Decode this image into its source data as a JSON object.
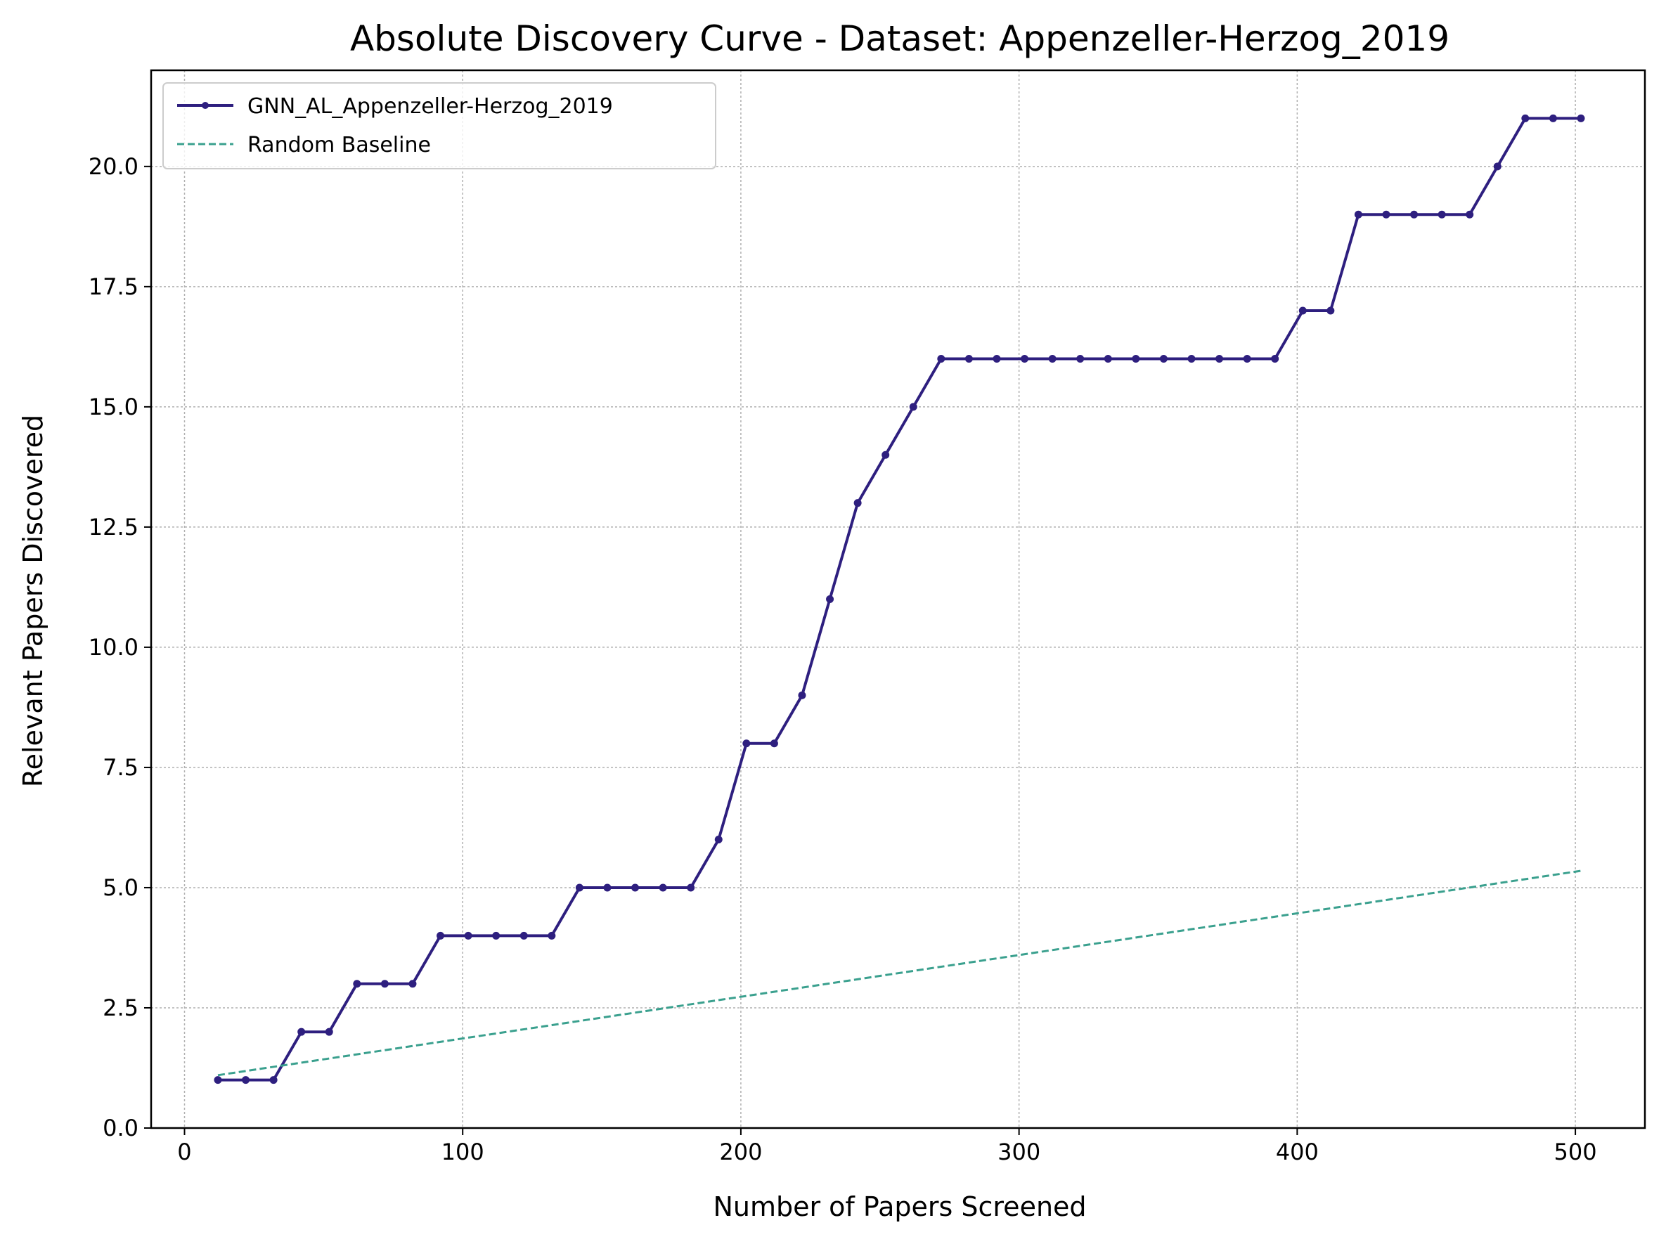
{
  "chart_data": {
    "type": "line",
    "title": "Absolute Discovery Curve - Dataset: Appenzeller-Herzog_2019",
    "xlabel": "Number of Papers Screened",
    "ylabel": "Relevant Papers Discovered",
    "xlim": [
      -12,
      525
    ],
    "ylim": [
      0,
      22
    ],
    "xticks": [
      0,
      100,
      200,
      300,
      400,
      500
    ],
    "yticks": [
      0.0,
      2.5,
      5.0,
      7.5,
      10.0,
      12.5,
      15.0,
      17.5,
      20.0
    ],
    "xtick_labels": [
      "0",
      "100",
      "200",
      "300",
      "400",
      "500"
    ],
    "ytick_labels": [
      "0.0",
      "2.5",
      "5.0",
      "7.5",
      "10.0",
      "12.5",
      "15.0",
      "17.5",
      "20.0"
    ],
    "grid": true,
    "legend_position": "top-left",
    "series": [
      {
        "name": "GNN_AL_Appenzeller-Herzog_2019",
        "color": "#2e1f7f",
        "style": "solid-marker",
        "x": [
          12,
          22,
          32,
          42,
          52,
          62,
          72,
          82,
          92,
          102,
          112,
          122,
          132,
          142,
          152,
          162,
          172,
          182,
          192,
          202,
          212,
          222,
          232,
          242,
          252,
          262,
          272,
          282,
          292,
          302,
          312,
          322,
          332,
          342,
          352,
          362,
          372,
          382,
          392,
          402,
          412,
          422,
          432,
          442,
          452,
          462,
          472,
          482,
          492,
          502
        ],
        "y": [
          1,
          1,
          1,
          2,
          2,
          3,
          3,
          3,
          4,
          4,
          4,
          4,
          4,
          5,
          5,
          5,
          5,
          5,
          6,
          8,
          8,
          9,
          11,
          13,
          14,
          15,
          16,
          16,
          16,
          16,
          16,
          16,
          16,
          16,
          16,
          16,
          16,
          16,
          16,
          17,
          17,
          19,
          19,
          19,
          19,
          19,
          20,
          21,
          21,
          21
        ]
      },
      {
        "name": "Random Baseline",
        "color": "#3aa08e",
        "style": "dashed",
        "x": [
          12,
          502
        ],
        "y": [
          1.1,
          5.35
        ]
      }
    ]
  }
}
